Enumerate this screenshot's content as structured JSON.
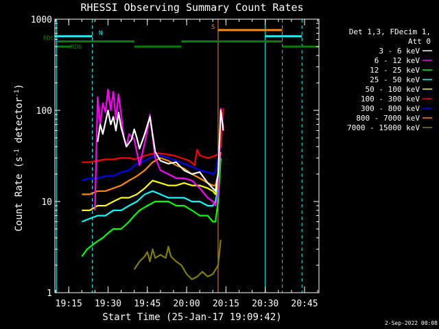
{
  "chart_data": {
    "type": "line",
    "title": "RHESSI Observing Summary Count Rates",
    "xlabel": "Start Time (25-Jan-17 19:09:42)",
    "ylabel_main": "Count Rate (s",
    "ylabel_sup1": "-1",
    "ylabel_mid": " detector",
    "ylabel_sup2": "-1",
    "ylabel_end": ")",
    "date_stamp": "2-Sep-2022 00:08",
    "x_unit": "minutes",
    "xlim": [
      1149.7,
      1250.5
    ],
    "ylim": [
      1,
      1000
    ],
    "yscale": "log",
    "x_ticks": [
      {
        "value": 1155,
        "label": "19:15"
      },
      {
        "value": 1170,
        "label": "19:30"
      },
      {
        "value": 1185,
        "label": "19:45"
      },
      {
        "value": 1200,
        "label": "20:00"
      },
      {
        "value": 1215,
        "label": "20:15"
      },
      {
        "value": 1230,
        "label": "20:30"
      },
      {
        "value": 1245,
        "label": "20:45"
      }
    ],
    "y_ticks": [
      {
        "value": 1,
        "label": "1"
      },
      {
        "value": 10,
        "label": "10"
      },
      {
        "value": 100,
        "label": "100"
      },
      {
        "value": 1000,
        "label": "1000"
      }
    ],
    "legend_header": [
      "Det 1,3, FDecim 1,",
      "Att 0"
    ],
    "series": [
      {
        "name": "3 - 6 keV",
        "color": "#ffffff",
        "points": [
          [
            1166,
            45
          ],
          [
            1167,
            70
          ],
          [
            1168,
            55
          ],
          [
            1170,
            100
          ],
          [
            1171,
            70
          ],
          [
            1172,
            85
          ],
          [
            1173,
            60
          ],
          [
            1174,
            95
          ],
          [
            1175,
            65
          ],
          [
            1177,
            40
          ],
          [
            1179,
            48
          ],
          [
            1180,
            62
          ],
          [
            1181,
            50
          ],
          [
            1182,
            38
          ],
          [
            1184,
            55
          ],
          [
            1186,
            85
          ],
          [
            1188,
            35
          ],
          [
            1190,
            28
          ],
          [
            1193,
            26
          ],
          [
            1196,
            27
          ],
          [
            1199,
            22
          ],
          [
            1202,
            20
          ],
          [
            1205,
            21
          ],
          [
            1208,
            16
          ],
          [
            1210,
            14
          ],
          [
            1211,
            13
          ],
          [
            1212,
            20
          ],
          [
            1213,
            100
          ],
          [
            1214,
            60
          ]
        ]
      },
      {
        "name": "6 - 12 keV",
        "color": "#ff00ff",
        "points": [
          [
            1165,
            8
          ],
          [
            1166,
            140
          ],
          [
            1167,
            70
          ],
          [
            1168,
            120
          ],
          [
            1169,
            95
          ],
          [
            1170,
            170
          ],
          [
            1171,
            100
          ],
          [
            1172,
            160
          ],
          [
            1173,
            80
          ],
          [
            1174,
            150
          ],
          [
            1175,
            90
          ],
          [
            1176,
            50
          ],
          [
            1177,
            40
          ],
          [
            1178,
            55
          ],
          [
            1180,
            48
          ],
          [
            1182,
            25
          ],
          [
            1183,
            33
          ],
          [
            1185,
            60
          ],
          [
            1186,
            90
          ],
          [
            1187,
            50
          ],
          [
            1188,
            30
          ],
          [
            1190,
            22
          ],
          [
            1193,
            20
          ],
          [
            1196,
            18
          ],
          [
            1199,
            18
          ],
          [
            1202,
            17
          ],
          [
            1205,
            14
          ],
          [
            1208,
            11
          ],
          [
            1210,
            10
          ],
          [
            1211,
            9
          ],
          [
            1212,
            12
          ],
          [
            1213,
            105
          ],
          [
            1214,
            65
          ]
        ]
      },
      {
        "name": "12 - 25 keV",
        "color": "#00ff00",
        "points": [
          [
            1160,
            2.5
          ],
          [
            1162,
            3
          ],
          [
            1165,
            3.5
          ],
          [
            1168,
            4
          ],
          [
            1170,
            4.5
          ],
          [
            1172,
            5
          ],
          [
            1175,
            5
          ],
          [
            1178,
            6
          ],
          [
            1180,
            7
          ],
          [
            1182,
            8
          ],
          [
            1185,
            9
          ],
          [
            1188,
            10
          ],
          [
            1190,
            10
          ],
          [
            1193,
            10
          ],
          [
            1196,
            9
          ],
          [
            1199,
            9
          ],
          [
            1202,
            8
          ],
          [
            1205,
            7
          ],
          [
            1208,
            7
          ],
          [
            1210,
            6
          ],
          [
            1211,
            6
          ],
          [
            1212,
            10
          ],
          [
            1213,
            30
          ]
        ]
      },
      {
        "name": "25 - 50 keV",
        "color": "#00ffff",
        "points": [
          [
            1160,
            6
          ],
          [
            1163,
            6.5
          ],
          [
            1166,
            7
          ],
          [
            1169,
            7
          ],
          [
            1172,
            8
          ],
          [
            1175,
            8
          ],
          [
            1178,
            9
          ],
          [
            1181,
            10
          ],
          [
            1184,
            12
          ],
          [
            1187,
            13
          ],
          [
            1190,
            12
          ],
          [
            1193,
            11
          ],
          [
            1196,
            11
          ],
          [
            1199,
            11
          ],
          [
            1202,
            10
          ],
          [
            1205,
            10
          ],
          [
            1208,
            9
          ],
          [
            1210,
            9
          ],
          [
            1211,
            10
          ],
          [
            1212,
            14
          ],
          [
            1213,
            30
          ]
        ]
      },
      {
        "name": "50 - 100 keV",
        "color": "#ffff00",
        "points": [
          [
            1160,
            8
          ],
          [
            1163,
            8
          ],
          [
            1166,
            9
          ],
          [
            1169,
            9
          ],
          [
            1172,
            10
          ],
          [
            1175,
            11
          ],
          [
            1178,
            11
          ],
          [
            1181,
            12
          ],
          [
            1184,
            14
          ],
          [
            1187,
            17
          ],
          [
            1190,
            16
          ],
          [
            1193,
            15
          ],
          [
            1196,
            15
          ],
          [
            1199,
            16
          ],
          [
            1202,
            15
          ],
          [
            1205,
            15
          ],
          [
            1208,
            14
          ],
          [
            1210,
            13
          ],
          [
            1211,
            12
          ],
          [
            1212,
            16
          ],
          [
            1213,
            30
          ]
        ]
      },
      {
        "name": "100 - 300 keV",
        "color": "#ff0000",
        "points": [
          [
            1160,
            27
          ],
          [
            1163,
            27
          ],
          [
            1166,
            28
          ],
          [
            1169,
            29
          ],
          [
            1172,
            29
          ],
          [
            1175,
            30
          ],
          [
            1178,
            30
          ],
          [
            1180,
            29
          ],
          [
            1183,
            31
          ],
          [
            1186,
            33
          ],
          [
            1189,
            34
          ],
          [
            1192,
            33
          ],
          [
            1195,
            32
          ],
          [
            1198,
            30
          ],
          [
            1201,
            28
          ],
          [
            1203,
            25
          ],
          [
            1204,
            37
          ],
          [
            1205,
            32
          ],
          [
            1208,
            30
          ],
          [
            1210,
            31
          ],
          [
            1212,
            33
          ],
          [
            1213,
            40
          ],
          [
            1214,
            105
          ]
        ]
      },
      {
        "name": "300 - 800 keV",
        "color": "#0000ff",
        "points": [
          [
            1160,
            17
          ],
          [
            1163,
            18
          ],
          [
            1166,
            18
          ],
          [
            1169,
            19
          ],
          [
            1172,
            19
          ],
          [
            1175,
            21
          ],
          [
            1178,
            22
          ],
          [
            1181,
            26
          ],
          [
            1184,
            28
          ],
          [
            1187,
            31
          ],
          [
            1190,
            32
          ],
          [
            1193,
            30
          ],
          [
            1196,
            28
          ],
          [
            1199,
            26
          ],
          [
            1202,
            24
          ],
          [
            1205,
            22
          ],
          [
            1208,
            21
          ],
          [
            1210,
            20
          ],
          [
            1211,
            21
          ],
          [
            1212,
            30
          ],
          [
            1213,
            60
          ]
        ]
      },
      {
        "name": "800 - 7000 keV",
        "color": "#ff8c00",
        "points": [
          [
            1160,
            12
          ],
          [
            1163,
            12
          ],
          [
            1166,
            13
          ],
          [
            1169,
            13
          ],
          [
            1172,
            14
          ],
          [
            1175,
            15
          ],
          [
            1178,
            17
          ],
          [
            1181,
            19
          ],
          [
            1184,
            22
          ],
          [
            1187,
            27
          ],
          [
            1190,
            30
          ],
          [
            1193,
            28
          ],
          [
            1196,
            25
          ],
          [
            1199,
            23
          ],
          [
            1202,
            20
          ],
          [
            1205,
            18
          ],
          [
            1208,
            16
          ],
          [
            1210,
            15
          ],
          [
            1211,
            15
          ],
          [
            1212,
            20
          ],
          [
            1213,
            35
          ]
        ]
      },
      {
        "name": "7000 - 15000 keV",
        "color": "#808000",
        "points": [
          [
            1180,
            1.8
          ],
          [
            1182,
            2.2
          ],
          [
            1184,
            2.5
          ],
          [
            1185,
            2.8
          ],
          [
            1186,
            2.2
          ],
          [
            1187,
            3
          ],
          [
            1188,
            2.4
          ],
          [
            1190,
            2.6
          ],
          [
            1192,
            2.4
          ],
          [
            1193,
            3.2
          ],
          [
            1194,
            2.5
          ],
          [
            1196,
            2.2
          ],
          [
            1198,
            2
          ],
          [
            1200,
            1.6
          ],
          [
            1202,
            1.4
          ],
          [
            1204,
            1.5
          ],
          [
            1206,
            1.7
          ],
          [
            1208,
            1.5
          ],
          [
            1210,
            1.6
          ],
          [
            1212,
            2
          ],
          [
            1213,
            3.8
          ]
        ]
      }
    ],
    "flag_lines": [
      {
        "label": "N",
        "color": "#00ffff",
        "x_start": 1149.7,
        "x_end": 1164,
        "level": 650
      },
      {
        "label": "",
        "color": "#00ffff",
        "x_start": 1230,
        "x_end": 1244,
        "level": 650
      },
      {
        "label": "S",
        "color": "#ff8c00",
        "x_start": 1212,
        "x_end": 1236.5,
        "level": 760
      },
      {
        "label": "RDC",
        "color": "#008000",
        "x_start": 1150.5,
        "x_end": 1180,
        "level": 570
      },
      {
        "label": "",
        "color": "#008000",
        "x_start": 1198,
        "x_end": 1236.5,
        "level": 570
      },
      {
        "label": "RD6",
        "color": "#008000",
        "x_start": 1150.5,
        "x_end": 1156,
        "level": 500
      },
      {
        "label": "",
        "color": "#008000",
        "x_start": 1180,
        "x_end": 1198,
        "level": 500
      },
      {
        "label": "",
        "color": "#008000",
        "x_start": 1236.5,
        "x_end": 1250.5,
        "level": 500
      }
    ],
    "vlines": [
      {
        "x": 1150.3,
        "color": "#00ffff",
        "style": "solid"
      },
      {
        "x": 1164,
        "color": "#00ffff",
        "style": "dashed"
      },
      {
        "x": 1212,
        "color": "#ff8c00",
        "style": "solid"
      },
      {
        "x": 1230,
        "color": "#00ffff",
        "style": "solid"
      },
      {
        "x": 1236.5,
        "color": "#ff8c00",
        "style": "dashed"
      },
      {
        "x": 1244,
        "color": "#00ffff",
        "style": "dashed"
      }
    ]
  }
}
